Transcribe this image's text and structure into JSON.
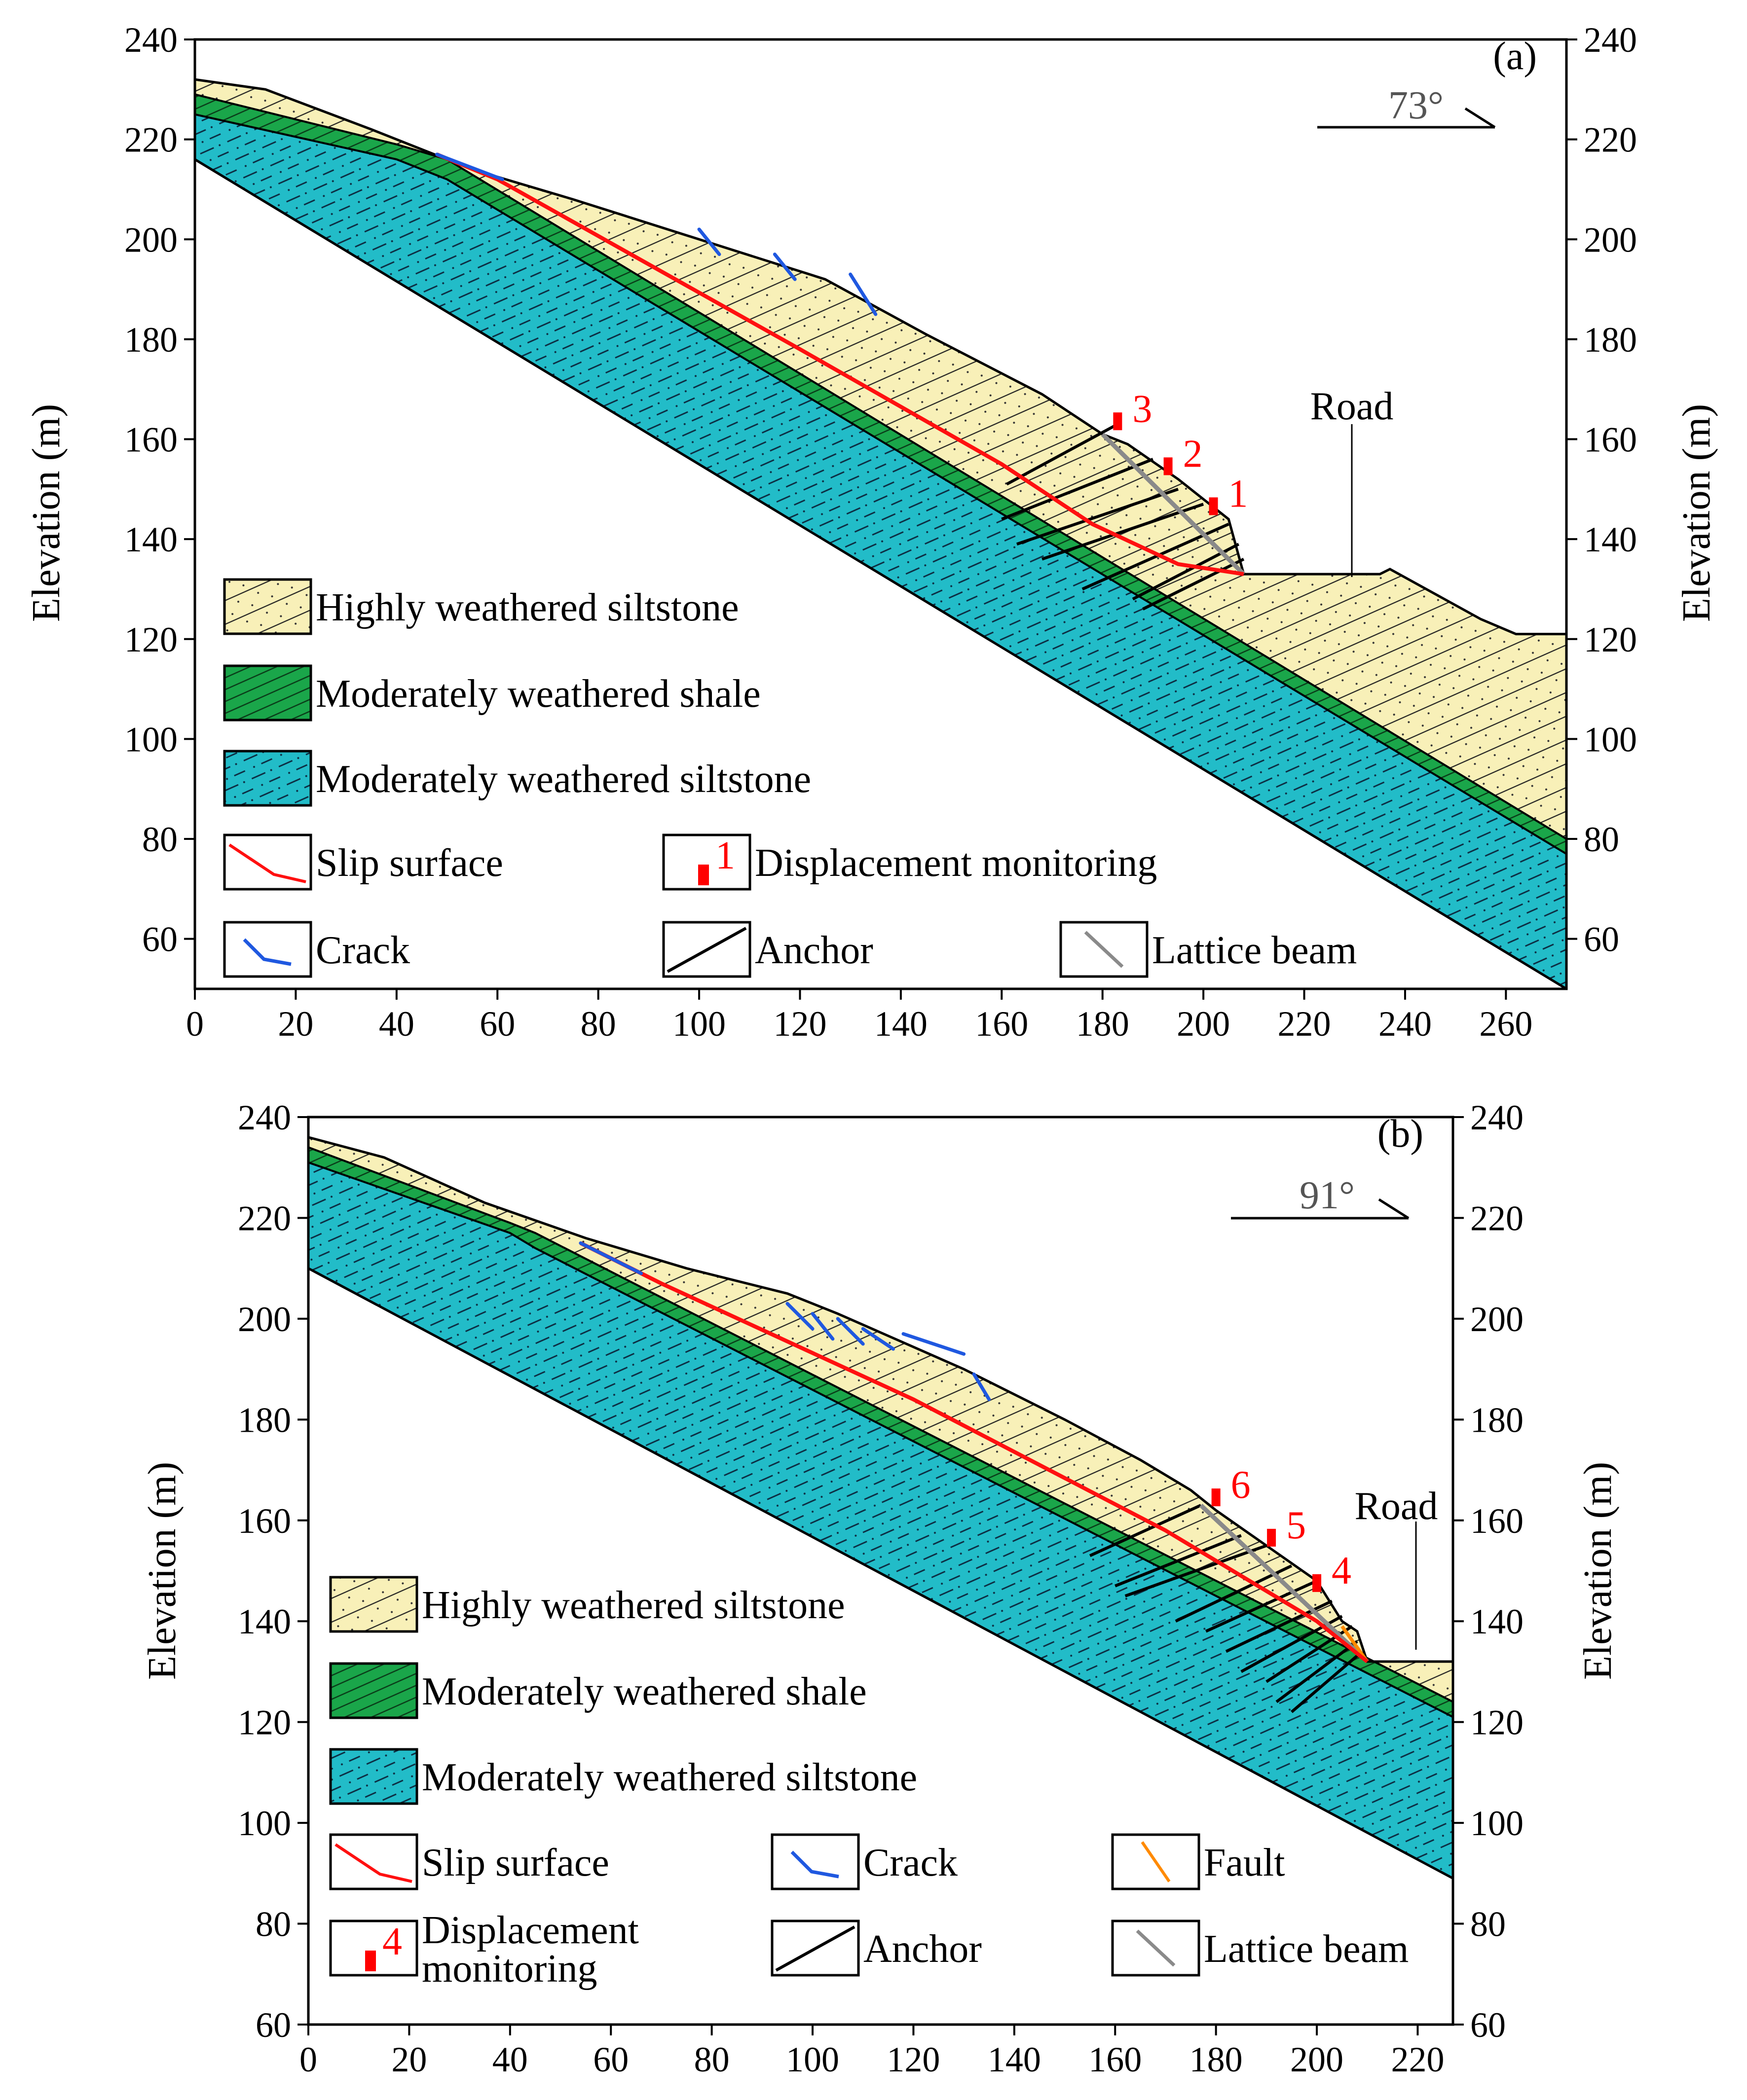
{
  "colors": {
    "siltstone_highly": "#f8f0b8",
    "shale": "#1aa64a",
    "siltstone_moderate": "#22bcc8",
    "slip": "#ff1010",
    "crack": "#1f58e0",
    "fault": "#ff8a00",
    "lattice": "#8a8a8a",
    "monitor": "#ff0000",
    "text": "#000000",
    "angle_text": "#555555"
  },
  "panels": [
    {
      "id": "a",
      "label": "(a)",
      "dip_angle": "73°",
      "y_axis_label": "Elevation (m)",
      "road_label": "Road",
      "x_range": [
        0,
        272
      ],
      "y_range": [
        50,
        240
      ],
      "x_ticks": [
        0,
        20,
        40,
        60,
        80,
        100,
        120,
        140,
        160,
        180,
        200,
        220,
        240,
        260
      ],
      "y_ticks": [
        60,
        80,
        100,
        120,
        140,
        160,
        180,
        200,
        220,
        240
      ],
      "surface": [
        [
          0,
          232
        ],
        [
          14,
          230
        ],
        [
          35,
          222
        ],
        [
          55,
          214
        ],
        [
          75,
          208
        ],
        [
          100,
          200
        ],
        [
          125,
          192
        ],
        [
          145,
          181
        ],
        [
          168,
          169
        ],
        [
          180,
          161
        ],
        [
          185,
          159
        ],
        [
          195,
          152
        ],
        [
          205,
          144
        ],
        [
          208,
          133
        ],
        [
          235,
          133
        ],
        [
          237,
          134
        ],
        [
          255,
          124
        ],
        [
          262,
          121
        ],
        [
          272,
          121
        ]
      ],
      "shale_top": [
        [
          0,
          229
        ],
        [
          40,
          219
        ],
        [
          50,
          216
        ],
        [
          272,
          80
        ]
      ],
      "shale_bot": [
        [
          0,
          225
        ],
        [
          40,
          216
        ],
        [
          50,
          212
        ],
        [
          272,
          77
        ]
      ],
      "bedrock_base": [
        [
          0,
          216
        ],
        [
          272,
          50
        ]
      ],
      "slip": [
        [
          48,
          217
        ],
        [
          60,
          212
        ],
        [
          120,
          178
        ],
        [
          160,
          155
        ],
        [
          178,
          143
        ],
        [
          195,
          135
        ],
        [
          208,
          133
        ]
      ],
      "cracks": [
        [
          [
            48,
            217
          ],
          [
            61,
            212
          ]
        ],
        [
          [
            100,
            202
          ],
          [
            104,
            197
          ]
        ],
        [
          [
            115,
            197
          ],
          [
            119,
            192
          ]
        ],
        [
          [
            130,
            193
          ],
          [
            135,
            185
          ]
        ]
      ],
      "anchors": [
        [
          [
            183,
            163
          ],
          [
            161,
            151
          ]
        ],
        [
          [
            190,
            156
          ],
          [
            160,
            144
          ]
        ],
        [
          [
            195,
            150
          ],
          [
            163,
            139
          ]
        ],
        [
          [
            200,
            147
          ],
          [
            168,
            136
          ]
        ],
        [
          [
            205,
            143
          ],
          [
            176,
            130
          ]
        ],
        [
          [
            207,
            139
          ],
          [
            186,
            128
          ]
        ],
        [
          [
            208,
            136
          ],
          [
            188,
            126
          ]
        ]
      ],
      "lattice": [
        [
          [
            180,
            161
          ],
          [
            208,
            133
          ]
        ]
      ],
      "monitors": [
        {
          "label": "3",
          "x": 183,
          "y": 162
        },
        {
          "label": "2",
          "x": 193,
          "y": 153
        },
        {
          "label": "1",
          "x": 202,
          "y": 145
        }
      ],
      "legend": [
        {
          "type": "highly",
          "label": "Highly weathered siltstone"
        },
        {
          "type": "shale",
          "label": "Moderately weathered shale"
        },
        {
          "type": "moderate",
          "label": "Moderately weathered siltstone"
        },
        {
          "type": "slip",
          "label": "Slip surface"
        },
        {
          "type": "monitor",
          "label": "Displacement monitoring",
          "num": "1"
        },
        {
          "type": "crack",
          "label": "Crack"
        },
        {
          "type": "anchor",
          "label": "Anchor"
        },
        {
          "type": "lattice",
          "label": "Lattice beam"
        }
      ]
    },
    {
      "id": "b",
      "label": "(b)",
      "dip_angle": "91°",
      "y_axis_label": "Elevation (m)",
      "road_label": "Road",
      "x_range": [
        0,
        227
      ],
      "y_range": [
        60,
        240
      ],
      "x_ticks": [
        0,
        20,
        40,
        60,
        80,
        100,
        120,
        140,
        160,
        180,
        200,
        220
      ],
      "y_ticks": [
        60,
        80,
        100,
        120,
        140,
        160,
        180,
        200,
        220,
        240
      ],
      "surface": [
        [
          0,
          236
        ],
        [
          15,
          232
        ],
        [
          35,
          223
        ],
        [
          55,
          216
        ],
        [
          75,
          210
        ],
        [
          95,
          205
        ],
        [
          105,
          201
        ],
        [
          130,
          190
        ],
        [
          150,
          180
        ],
        [
          165,
          172
        ],
        [
          175,
          166
        ],
        [
          180,
          162
        ],
        [
          190,
          155
        ],
        [
          200,
          148
        ],
        [
          205,
          140
        ],
        [
          208,
          138
        ],
        [
          210,
          132
        ],
        [
          227,
          132
        ]
      ],
      "shale_top": [
        [
          0,
          234
        ],
        [
          40,
          219
        ],
        [
          45,
          217
        ],
        [
          227,
          124
        ]
      ],
      "shale_bot": [
        [
          0,
          231
        ],
        [
          40,
          217
        ],
        [
          45,
          214
        ],
        [
          227,
          121
        ]
      ],
      "bedrock_base": [
        [
          0,
          210
        ],
        [
          227,
          89
        ]
      ],
      "slip": [
        [
          54,
          215
        ],
        [
          70,
          207
        ],
        [
          120,
          184
        ],
        [
          170,
          158
        ],
        [
          200,
          140
        ],
        [
          210,
          132
        ]
      ],
      "cracks": [
        [
          [
            54,
            215
          ],
          [
            66,
            209
          ]
        ],
        [
          [
            95,
            203
          ],
          [
            100,
            198
          ]
        ],
        [
          [
            100,
            201
          ],
          [
            104,
            196
          ]
        ],
        [
          [
            105,
            200
          ],
          [
            110,
            195
          ]
        ],
        [
          [
            110,
            198
          ],
          [
            116,
            194
          ]
        ],
        [
          [
            118,
            197
          ],
          [
            130,
            193
          ]
        ],
        [
          [
            132,
            189
          ],
          [
            135,
            184
          ]
        ]
      ],
      "anchors": [
        [
          [
            177,
            163
          ],
          [
            155,
            153
          ]
        ],
        [
          [
            185,
            157
          ],
          [
            160,
            147
          ]
        ],
        [
          [
            190,
            155
          ],
          [
            162,
            145
          ]
        ],
        [
          [
            195,
            151
          ],
          [
            172,
            140
          ]
        ],
        [
          [
            200,
            148
          ],
          [
            178,
            138
          ]
        ],
        [
          [
            203,
            144
          ],
          [
            182,
            134
          ]
        ],
        [
          [
            205,
            141
          ],
          [
            185,
            130
          ]
        ],
        [
          [
            207,
            139
          ],
          [
            190,
            128
          ]
        ],
        [
          [
            208,
            136
          ],
          [
            192,
            124
          ]
        ],
        [
          [
            209,
            134
          ],
          [
            195,
            122
          ]
        ]
      ],
      "lattice": [
        [
          [
            177,
            163
          ],
          [
            210,
            132
          ]
        ]
      ],
      "faults": [
        [
          [
            205,
            139
          ],
          [
            210,
            132
          ]
        ]
      ],
      "monitors": [
        {
          "label": "6",
          "x": 180,
          "y": 163
        },
        {
          "label": "5",
          "x": 191,
          "y": 155
        },
        {
          "label": "4",
          "x": 200,
          "y": 146
        }
      ],
      "legend": [
        {
          "type": "highly",
          "label": "Highly weathered siltstone"
        },
        {
          "type": "shale",
          "label": "Moderately weathered shale"
        },
        {
          "type": "moderate",
          "label": "Moderately weathered siltstone"
        },
        {
          "type": "slip",
          "label": "Slip surface"
        },
        {
          "type": "crack",
          "label": "Crack"
        },
        {
          "type": "fault",
          "label": "Fault"
        },
        {
          "type": "monitor",
          "label": "Displacement monitoring",
          "label_line1": "Displacement",
          "label_line2": "monitoring",
          "num": "4"
        },
        {
          "type": "anchor",
          "label": "Anchor"
        },
        {
          "type": "lattice",
          "label": "Lattice beam"
        }
      ]
    }
  ]
}
